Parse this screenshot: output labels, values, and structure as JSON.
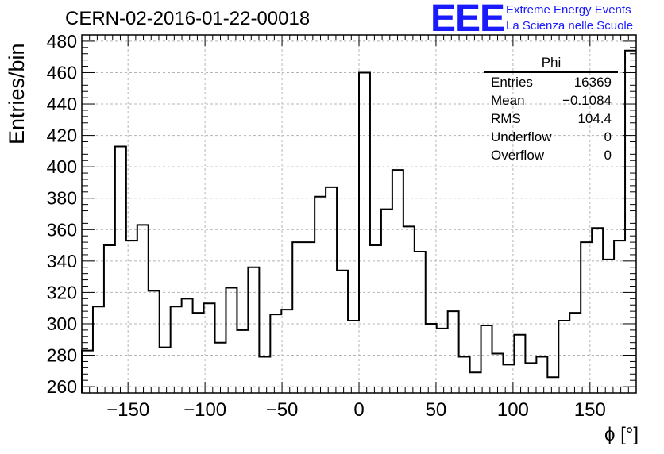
{
  "title": "CERN-02-2016-01-22-00018",
  "logo": {
    "mark": "EEE",
    "line1": "Extreme Energy Events",
    "line2": "La Scienza nelle Scuole",
    "color": "#1a1aff"
  },
  "stats": {
    "name": "Phi",
    "rows": [
      {
        "label": "Entries",
        "value": "16369"
      },
      {
        "label": "Mean",
        "value": "−0.1084"
      },
      {
        "label": "RMS",
        "value": "104.4"
      },
      {
        "label": "Underflow",
        "value": "0"
      },
      {
        "label": "Overflow",
        "value": "0"
      }
    ]
  },
  "chart_data": {
    "type": "histogram",
    "title": "CERN-02-2016-01-22-00018",
    "xlabel": "ϕ [°]",
    "ylabel": "Entries/bin",
    "xlim": [
      -180,
      180
    ],
    "ylim": [
      256,
      484
    ],
    "bin_width": 7.2,
    "bin_edges_start": -180,
    "values": [
      283,
      311,
      350,
      413,
      353,
      363,
      321,
      285,
      311,
      316,
      307,
      313,
      288,
      323,
      296,
      336,
      279,
      306,
      309,
      352,
      352,
      381,
      387,
      334,
      302,
      460,
      350,
      373,
      398,
      362,
      346,
      300,
      297,
      308,
      279,
      269,
      299,
      281,
      274,
      293,
      275,
      279,
      266,
      302,
      307,
      352,
      361,
      341,
      353,
      474
    ],
    "xticks": [
      -150,
      -100,
      -50,
      0,
      50,
      100,
      150
    ],
    "xtick_labels": [
      "−150",
      "−100",
      "−50",
      "0",
      "50",
      "100",
      "150"
    ],
    "yticks": [
      260,
      280,
      300,
      320,
      340,
      360,
      380,
      400,
      420,
      440,
      460,
      480
    ],
    "grid": true,
    "line_color": "#000000"
  }
}
